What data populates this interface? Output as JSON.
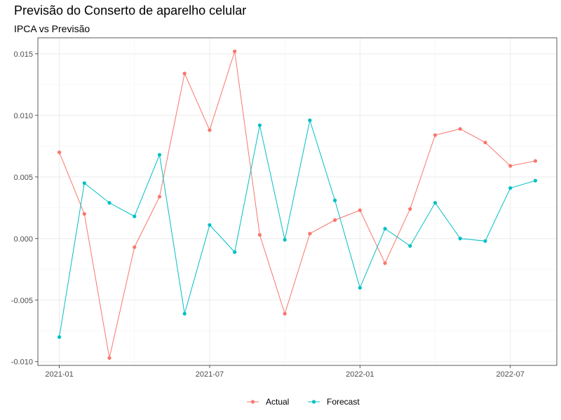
{
  "chart_data": {
    "type": "line",
    "title": "Previsão do Conserto de aparelho celular",
    "subtitle": "IPCA vs Previsão",
    "xlabel": "",
    "ylabel": "",
    "x": [
      "2021-01",
      "2021-02",
      "2021-03",
      "2021-04",
      "2021-05",
      "2021-06",
      "2021-07",
      "2021-08",
      "2021-09",
      "2021-10",
      "2021-11",
      "2021-12",
      "2022-01",
      "2022-02",
      "2022-03",
      "2022-04",
      "2022-05",
      "2022-06",
      "2022-07",
      "2022-08"
    ],
    "x_ticks": [
      "2021-01",
      "2021-07",
      "2022-01",
      "2022-07"
    ],
    "ylim": [
      -0.0103,
      0.0163
    ],
    "y_ticks": [
      -0.01,
      -0.005,
      0.0,
      0.005,
      0.01,
      0.015
    ],
    "y_tick_labels": [
      "-0.010",
      "-0.005",
      "0.000",
      "0.005",
      "0.010",
      "0.015"
    ],
    "grid": true,
    "legend_position": "bottom",
    "series": [
      {
        "name": "Actual",
        "color": "#F8766D",
        "values": [
          0.007,
          0.002,
          -0.0097,
          -0.0007,
          0.0034,
          0.0134,
          0.0088,
          0.0152,
          0.0003,
          -0.0061,
          0.0004,
          0.0015,
          0.0023,
          -0.002,
          0.0024,
          0.0084,
          0.0089,
          0.0078,
          0.0059,
          0.0063
        ]
      },
      {
        "name": "Forecast",
        "color": "#00BFC4",
        "values": [
          -0.008,
          0.0045,
          0.0029,
          0.0018,
          0.0068,
          -0.0061,
          0.0011,
          -0.0011,
          0.0092,
          -0.0001,
          0.0096,
          0.0031,
          -0.004,
          0.0008,
          -0.0006,
          0.0029,
          0.0,
          -0.0002,
          0.0041,
          0.0047
        ]
      }
    ]
  }
}
